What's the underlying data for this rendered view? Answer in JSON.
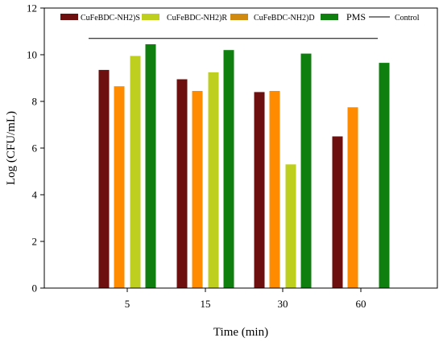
{
  "chart_data": {
    "type": "bar",
    "title": "",
    "xlabel": "Time (min)",
    "ylabel": "Log (CFU/mL)",
    "ylim": [
      0,
      12
    ],
    "yticks": [
      "0",
      "2",
      "4",
      "6",
      "8",
      "10",
      "12"
    ],
    "categories": [
      "5",
      "15",
      "30",
      "60"
    ],
    "series": [
      {
        "name": "CuFeBDC-NH2)S",
        "color": "#6e0f0f",
        "values": [
          9.35,
          8.95,
          8.4,
          6.5
        ]
      },
      {
        "name": "CuFeBDC-NH2)D",
        "color": "#ff8c00",
        "values": [
          8.65,
          8.45,
          8.45,
          7.75
        ]
      },
      {
        "name": "CuFeBDC-NH2)R",
        "color": "#bfcf1f",
        "values": [
          9.95,
          9.25,
          5.3,
          null
        ]
      },
      {
        "name": "PMS",
        "color": "#0f7f0f",
        "values": [
          10.45,
          10.2,
          10.05,
          9.65
        ]
      }
    ],
    "control_line": {
      "name": "Control",
      "value": 10.7,
      "color": "#000000"
    },
    "legend": {
      "placement": "top",
      "entries": [
        {
          "label": "CuFeBDC-NH2)S",
          "color": "#6e0f0f",
          "kind": "box"
        },
        {
          "label": "CuFeBDC-NH2)R",
          "color": "#bfcf1f",
          "kind": "box"
        },
        {
          "label": "CuFeBDC-NH2)D",
          "color": "#d08a10",
          "kind": "box"
        },
        {
          "label": "PMS",
          "color": "#0f7f0f",
          "kind": "box"
        },
        {
          "label": "Control",
          "color": "#000000",
          "kind": "line"
        }
      ]
    }
  }
}
